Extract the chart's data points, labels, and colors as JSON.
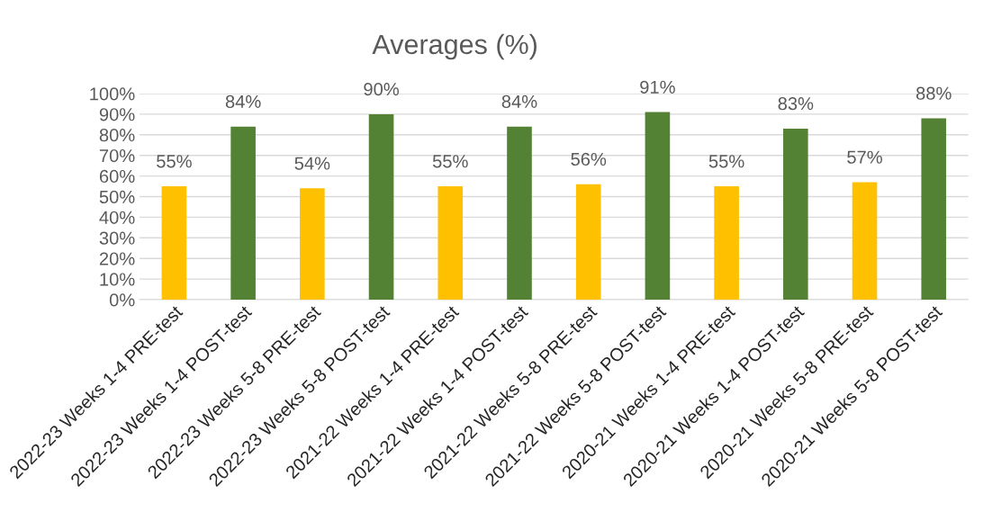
{
  "chart_data": {
    "type": "bar",
    "title": "Averages (%)",
    "categories": [
      "2022-23 Weeks 1-4 PRE-test",
      "2022-23 Weeks 1-4 POST-test",
      "2022-23 Weeks 5-8 PRE-test",
      "2022-23 Weeks 5-8 POST-test",
      "2021-22 Weeks 1-4 PRE-test",
      "2021-22 Weeks 1-4 POST-test",
      "2021-22 Weeks 5-8 PRE-test",
      "2021-22 Weeks 5-8 POST-test",
      "2020-21 Weeks 1-4 PRE-test",
      "2020-21 Weeks 1-4 POST-test",
      "2020-21 Weeks 5-8 PRE-test",
      "2020-21 Weeks 5-8 POST-test"
    ],
    "values": [
      55,
      84,
      54,
      90,
      55,
      84,
      56,
      91,
      55,
      83,
      57,
      88
    ],
    "value_labels": [
      "55%",
      "84%",
      "54%",
      "90%",
      "55%",
      "84%",
      "56%",
      "91%",
      "55%",
      "83%",
      "57%",
      "88%"
    ],
    "colors": [
      "#ffc000",
      "#548235",
      "#ffc000",
      "#548235",
      "#ffc000",
      "#548235",
      "#ffc000",
      "#548235",
      "#ffc000",
      "#548235",
      "#ffc000",
      "#548235"
    ],
    "ylim": [
      0,
      100
    ],
    "yticks": [
      {
        "value": 0,
        "label": "0%"
      },
      {
        "value": 10,
        "label": "10%"
      },
      {
        "value": 20,
        "label": "20%"
      },
      {
        "value": 30,
        "label": "30%"
      },
      {
        "value": 40,
        "label": "40%"
      },
      {
        "value": 50,
        "label": "50%"
      },
      {
        "value": 60,
        "label": "60%"
      },
      {
        "value": 70,
        "label": "70%"
      },
      {
        "value": 80,
        "label": "80%"
      },
      {
        "value": 90,
        "label": "90%"
      },
      {
        "value": 100,
        "label": "100%"
      }
    ],
    "grid": "y"
  }
}
